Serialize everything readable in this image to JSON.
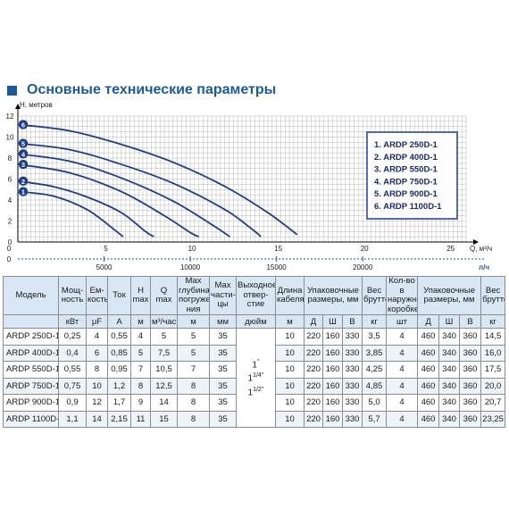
{
  "title": "Основные технические параметры",
  "chart_data": {
    "type": "line",
    "ylabel": "Н, метров",
    "xlabel": "Q, м³/ч",
    "x2label": "л/ч",
    "xlim": [
      0,
      26
    ],
    "ylim": [
      0,
      12
    ],
    "xticks": [
      "0",
      "5",
      "10",
      "15",
      "20",
      "25"
    ],
    "yticks": [
      "0",
      "2",
      "4",
      "6",
      "8",
      "10",
      "12"
    ],
    "x2ticks": [
      "5000",
      "10000",
      "15000",
      "20000"
    ],
    "grid": true,
    "legend": "top-right",
    "series": [
      {
        "name": "1.  ARDP 250D-1",
        "id": "1",
        "points": [
          [
            0,
            4.8
          ],
          [
            2,
            4.4
          ],
          [
            4,
            3.1
          ],
          [
            5.5,
            1.3
          ],
          [
            6.1,
            0.5
          ]
        ]
      },
      {
        "name": "2.  ARDP 400D-1",
        "id": "2",
        "points": [
          [
            0,
            5.8
          ],
          [
            2,
            5.3
          ],
          [
            4,
            4.3
          ],
          [
            6,
            2.8
          ],
          [
            7.4,
            1.0
          ],
          [
            7.9,
            0.5
          ]
        ]
      },
      {
        "name": "3.  ARDP 550D-1",
        "id": "3",
        "points": [
          [
            0,
            7.4
          ],
          [
            3,
            6.6
          ],
          [
            6,
            4.8
          ],
          [
            8.5,
            2.5
          ],
          [
            10,
            0.9
          ],
          [
            10.5,
            0.5
          ]
        ]
      },
      {
        "name": "4.  ARDP 750D-1",
        "id": "4",
        "points": [
          [
            0,
            8.4
          ],
          [
            3,
            7.7
          ],
          [
            6,
            6.1
          ],
          [
            9,
            3.9
          ],
          [
            11.3,
            1.6
          ],
          [
            12.3,
            0.5
          ]
        ]
      },
      {
        "name": "5.  ARDP 900D-1",
        "id": "5",
        "points": [
          [
            0,
            9.4
          ],
          [
            3,
            8.8
          ],
          [
            6,
            7.4
          ],
          [
            9,
            5.6
          ],
          [
            12,
            3.1
          ],
          [
            13.6,
            1.2
          ],
          [
            14.1,
            0.5
          ]
        ]
      },
      {
        "name": "6.  ARDP 1100D-1",
        "id": "6",
        "points": [
          [
            0,
            11.2
          ],
          [
            3,
            10.6
          ],
          [
            6,
            9.3
          ],
          [
            9,
            7.6
          ],
          [
            12,
            5.3
          ],
          [
            14.5,
            2.8
          ],
          [
            16.2,
            0.7
          ]
        ]
      }
    ]
  },
  "table": {
    "headers": [
      "Модель",
      "Мощ-ность",
      "Ем-кость",
      "Ток",
      "Н max",
      "Q max",
      "Max глубина погруже-ния",
      "Max части-цы",
      "Выходное отвер-стие",
      "Длина кабеля",
      "Упаковочные размеры, мм",
      "Вес брутто",
      "Кол-во в наружной коробке",
      "Упаковочные размеры, мм",
      "Вес брутто"
    ],
    "units": [
      "",
      "кВт",
      "μF",
      "A",
      "м",
      "м³/час",
      "м",
      "мм",
      "дюйм",
      "м",
      "Д",
      "Ш",
      "В",
      "кг",
      "шт",
      "Д",
      "Ш",
      "В",
      "кг"
    ],
    "outlet_sizes": [
      "1",
      "1",
      "1"
    ],
    "outlet_fracs": [
      "''",
      "1/4''",
      "1/2''"
    ],
    "rows": [
      [
        "ARDP 250D-1",
        "0,25",
        "4",
        "0,55",
        "4",
        "5",
        "5",
        "35",
        "10",
        "220",
        "160",
        "330",
        "3,5",
        "4",
        "460",
        "340",
        "360",
        "14,5"
      ],
      [
        "ARDP 400D-1",
        "0,4",
        "6",
        "0,85",
        "5",
        "7,5",
        "5",
        "35",
        "10",
        "220",
        "160",
        "330",
        "3,85",
        "4",
        "460",
        "340",
        "360",
        "16,0"
      ],
      [
        "ARDP 550D-1",
        "0,55",
        "8",
        "0,95",
        "7",
        "10,5",
        "7",
        "35",
        "10",
        "220",
        "160",
        "330",
        "4,25",
        "4",
        "460",
        "340",
        "360",
        "17,5"
      ],
      [
        "ARDP 750D-1",
        "0,75",
        "10",
        "1,2",
        "8",
        "12,5",
        "8",
        "35",
        "10",
        "220",
        "160",
        "330",
        "4,85",
        "4",
        "460",
        "340",
        "360",
        "20,0"
      ],
      [
        "ARDP 900D-1",
        "0,9",
        "12",
        "1,7",
        "9",
        "14",
        "8",
        "35",
        "10",
        "220",
        "160",
        "330",
        "5,0",
        "4",
        "460",
        "340",
        "360",
        "20,7"
      ],
      [
        "ARDP 1100D-1",
        "1,1",
        "14",
        "2,15",
        "11",
        "15",
        "8",
        "35",
        "10",
        "220",
        "160",
        "330",
        "5,7",
        "4",
        "460",
        "340",
        "360",
        "23,25"
      ]
    ]
  },
  "colors": {
    "title": "#1d5a9c",
    "curve": "#1f3d8a",
    "grid": "#9a9a9a",
    "header_bg": "#d9e6f3",
    "legend_border": "#1f3d8a"
  }
}
